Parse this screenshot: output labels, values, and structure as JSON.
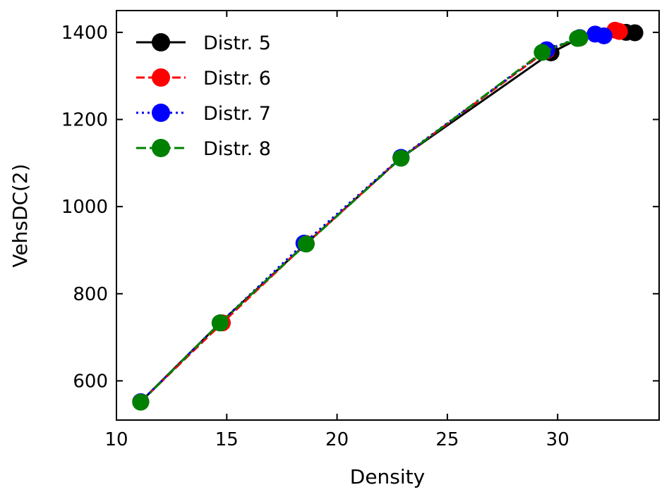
{
  "chart_data": {
    "type": "line",
    "xlabel": "Density",
    "ylabel": "VehsDC(2)",
    "xlim": [
      10,
      34.6
    ],
    "ylim": [
      510,
      1450
    ],
    "xticks": [
      10,
      15,
      20,
      25,
      30
    ],
    "yticks": [
      600,
      800,
      1000,
      1200,
      1400
    ],
    "grid": false,
    "legend": "top-left",
    "series": [
      {
        "name": "Distr. 5",
        "color": "#000000",
        "line": "solid",
        "points": [
          [
            11.1,
            552
          ],
          [
            14.7,
            733
          ],
          [
            18.6,
            915
          ],
          [
            22.9,
            1112
          ],
          [
            29.7,
            1353
          ],
          [
            31.0,
            1387
          ],
          [
            33.1,
            1400
          ],
          [
            33.5,
            1399
          ]
        ]
      },
      {
        "name": "Distr. 6",
        "color": "#ff0000",
        "line": "dashed",
        "points": [
          [
            11.1,
            552
          ],
          [
            14.8,
            733
          ],
          [
            18.6,
            915
          ],
          [
            22.9,
            1112
          ],
          [
            29.5,
            1358
          ],
          [
            31.0,
            1387
          ],
          [
            32.6,
            1405
          ],
          [
            32.8,
            1402
          ]
        ]
      },
      {
        "name": "Distr. 7",
        "color": "#0000ff",
        "line": "dotted",
        "points": [
          [
            11.1,
            552
          ],
          [
            14.7,
            733
          ],
          [
            18.5,
            916
          ],
          [
            22.9,
            1113
          ],
          [
            29.5,
            1360
          ],
          [
            31.0,
            1388
          ],
          [
            31.7,
            1396
          ],
          [
            32.1,
            1392
          ]
        ]
      },
      {
        "name": "Distr. 8",
        "color": "#008000",
        "line": "dashdot",
        "points": [
          [
            11.1,
            551
          ],
          [
            14.7,
            733
          ],
          [
            18.6,
            914
          ],
          [
            22.9,
            1111
          ],
          [
            29.3,
            1354
          ],
          [
            30.9,
            1386
          ],
          [
            31.0,
            1387
          ]
        ]
      }
    ]
  }
}
